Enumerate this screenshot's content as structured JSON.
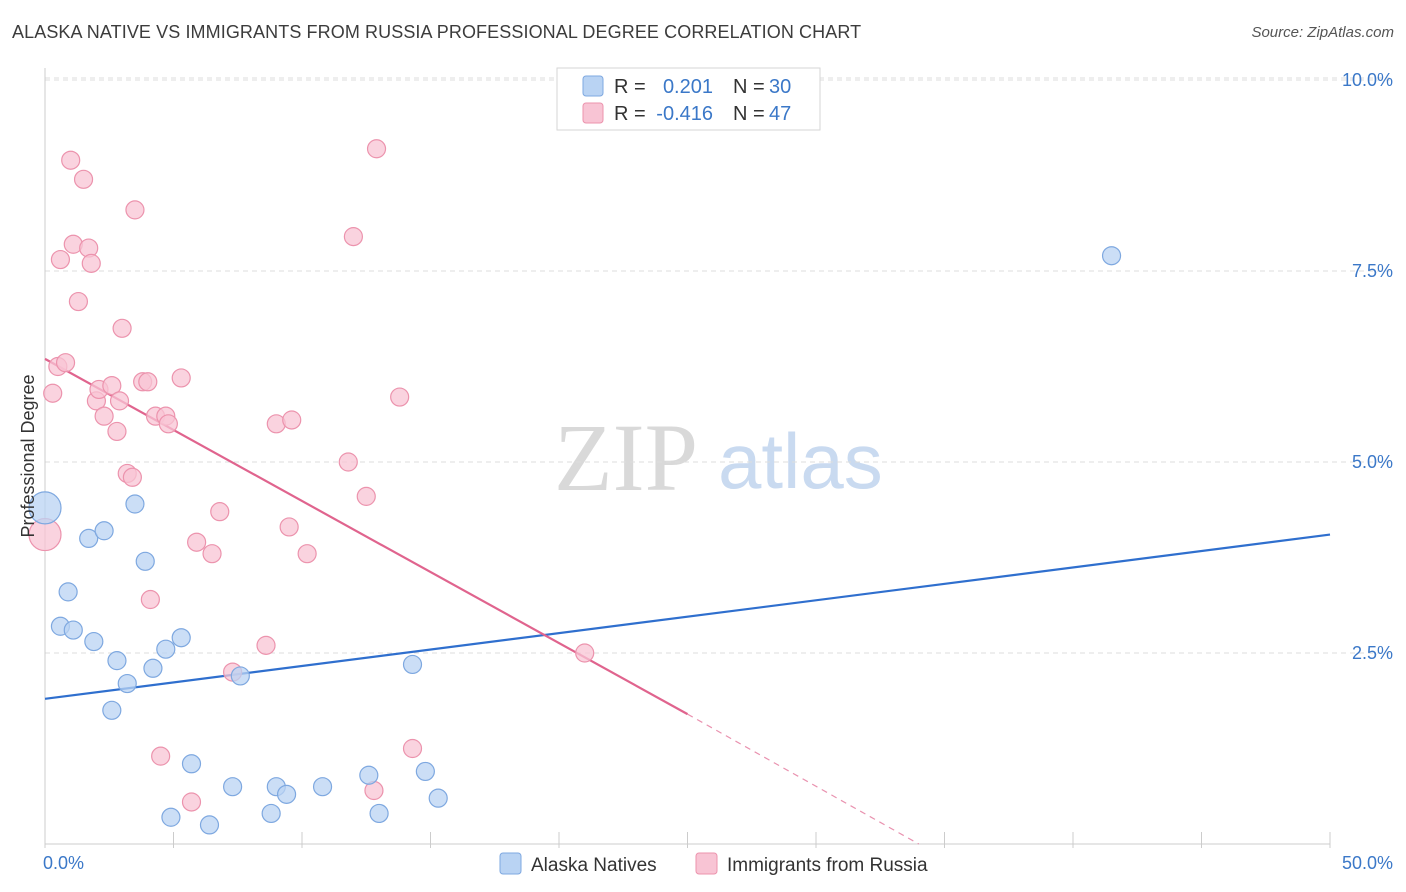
{
  "header": {
    "title": "ALASKA NATIVE VS IMMIGRANTS FROM RUSSIA PROFESSIONAL DEGREE CORRELATION CHART",
    "source": "Source: ZipAtlas.com"
  },
  "watermark": {
    "zip": "ZIP",
    "atlas": "atlas"
  },
  "colors": {
    "blue_fill": "#b9d3f3",
    "blue_stroke": "#7ea8e0",
    "blue_line": "#2f6fce",
    "pink_fill": "#f8c4d4",
    "pink_stroke": "#ec93ad",
    "pink_line": "#e0648e",
    "grid": "#dddddd",
    "tick_text": "#3b78c8"
  },
  "legend": {
    "row1": {
      "r_label": "R =",
      "r_value": "0.201",
      "n_label": "N =",
      "n_value": "30"
    },
    "row2": {
      "r_label": "R =",
      "r_value": "-0.416",
      "n_label": "N =",
      "n_value": "47"
    }
  },
  "chart_data": {
    "type": "scatter",
    "title": "ALASKA NATIVE VS IMMIGRANTS FROM RUSSIA PROFESSIONAL DEGREE CORRELATION CHART",
    "xlabel": "",
    "ylabel": "Professional Degree",
    "xlim": [
      0,
      50
    ],
    "ylim": [
      0,
      10.3
    ],
    "x_tick_labels": [
      {
        "value": 0,
        "label": "0.0%"
      },
      {
        "value": 50,
        "label": "50.0%"
      }
    ],
    "y_tick_labels": [
      {
        "value": 2.5,
        "label": "2.5%"
      },
      {
        "value": 5.0,
        "label": "5.0%"
      },
      {
        "value": 7.5,
        "label": "7.5%"
      },
      {
        "value": 10.0,
        "label": "10.0%"
      }
    ],
    "series": [
      {
        "name": "Alaska Natives",
        "color": "#b9d3f3",
        "r": 0.201,
        "n": 30,
        "trend": {
          "x": [
            0,
            50
          ],
          "y": [
            1.9,
            4.05
          ]
        },
        "points": [
          {
            "x": 0.0,
            "y": 4.4,
            "big": true
          },
          {
            "x": 0.6,
            "y": 2.85
          },
          {
            "x": 0.9,
            "y": 3.3
          },
          {
            "x": 1.1,
            "y": 2.8
          },
          {
            "x": 1.7,
            "y": 4.0
          },
          {
            "x": 1.9,
            "y": 2.65
          },
          {
            "x": 2.3,
            "y": 4.1
          },
          {
            "x": 2.6,
            "y": 1.75
          },
          {
            "x": 2.8,
            "y": 2.4
          },
          {
            "x": 3.2,
            "y": 2.1
          },
          {
            "x": 3.5,
            "y": 4.45
          },
          {
            "x": 3.9,
            "y": 3.7
          },
          {
            "x": 4.2,
            "y": 2.3
          },
          {
            "x": 4.7,
            "y": 2.55
          },
          {
            "x": 4.9,
            "y": 0.35
          },
          {
            "x": 5.3,
            "y": 2.7
          },
          {
            "x": 5.7,
            "y": 1.05
          },
          {
            "x": 6.4,
            "y": 0.25
          },
          {
            "x": 7.3,
            "y": 0.75
          },
          {
            "x": 7.6,
            "y": 2.2
          },
          {
            "x": 8.8,
            "y": 0.4
          },
          {
            "x": 9.0,
            "y": 0.75
          },
          {
            "x": 9.4,
            "y": 0.65
          },
          {
            "x": 10.8,
            "y": 0.75
          },
          {
            "x": 12.6,
            "y": 0.9
          },
          {
            "x": 13.0,
            "y": 0.4
          },
          {
            "x": 14.3,
            "y": 2.35
          },
          {
            "x": 14.8,
            "y": 0.95
          },
          {
            "x": 15.3,
            "y": 0.6
          },
          {
            "x": 41.5,
            "y": 7.7
          }
        ]
      },
      {
        "name": "Immigrants from Russia",
        "color": "#f8c4d4",
        "r": -0.416,
        "n": 47,
        "trend": {
          "x": [
            0,
            25
          ],
          "y": [
            6.35,
            1.7
          ]
        },
        "trend_dashed": {
          "x": [
            25,
            34
          ],
          "y": [
            1.7,
            0.0
          ]
        },
        "points": [
          {
            "x": 0.0,
            "y": 4.05,
            "big": true
          },
          {
            "x": 0.3,
            "y": 5.9
          },
          {
            "x": 0.5,
            "y": 6.25
          },
          {
            "x": 0.6,
            "y": 7.65
          },
          {
            "x": 0.8,
            "y": 6.3
          },
          {
            "x": 1.0,
            "y": 8.95
          },
          {
            "x": 1.1,
            "y": 7.85
          },
          {
            "x": 1.3,
            "y": 7.1
          },
          {
            "x": 1.5,
            "y": 8.7
          },
          {
            "x": 1.7,
            "y": 7.8
          },
          {
            "x": 1.8,
            "y": 7.6
          },
          {
            "x": 2.0,
            "y": 5.8
          },
          {
            "x": 2.1,
            "y": 5.95
          },
          {
            "x": 2.3,
            "y": 5.6
          },
          {
            "x": 2.6,
            "y": 6.0
          },
          {
            "x": 2.8,
            "y": 5.4
          },
          {
            "x": 2.9,
            "y": 5.8
          },
          {
            "x": 3.0,
            "y": 6.75
          },
          {
            "x": 3.2,
            "y": 4.85
          },
          {
            "x": 3.4,
            "y": 4.8
          },
          {
            "x": 3.5,
            "y": 8.3
          },
          {
            "x": 3.8,
            "y": 6.05
          },
          {
            "x": 4.0,
            "y": 6.05
          },
          {
            "x": 4.1,
            "y": 3.2
          },
          {
            "x": 4.3,
            "y": 5.6
          },
          {
            "x": 4.5,
            "y": 1.15
          },
          {
            "x": 4.7,
            "y": 5.6
          },
          {
            "x": 4.8,
            "y": 5.5
          },
          {
            "x": 5.3,
            "y": 6.1
          },
          {
            "x": 5.7,
            "y": 0.55
          },
          {
            "x": 5.9,
            "y": 3.95
          },
          {
            "x": 6.5,
            "y": 3.8
          },
          {
            "x": 6.8,
            "y": 4.35
          },
          {
            "x": 7.3,
            "y": 2.25
          },
          {
            "x": 8.6,
            "y": 2.6
          },
          {
            "x": 9.0,
            "y": 5.5
          },
          {
            "x": 9.5,
            "y": 4.15
          },
          {
            "x": 9.6,
            "y": 5.55
          },
          {
            "x": 10.2,
            "y": 3.8
          },
          {
            "x": 11.8,
            "y": 5.0
          },
          {
            "x": 12.0,
            "y": 7.95
          },
          {
            "x": 12.5,
            "y": 4.55
          },
          {
            "x": 12.8,
            "y": 0.7
          },
          {
            "x": 12.9,
            "y": 9.1
          },
          {
            "x": 13.8,
            "y": 5.85
          },
          {
            "x": 14.3,
            "y": 1.25
          },
          {
            "x": 21.0,
            "y": 2.5
          }
        ]
      }
    ]
  }
}
